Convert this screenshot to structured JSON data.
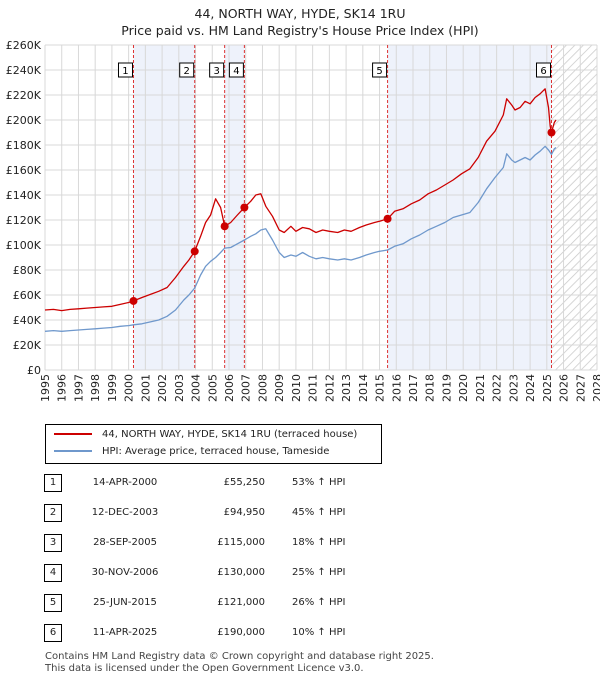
{
  "header": {
    "title_line1": "44, NORTH WAY, HYDE, SK14 1RU",
    "title_line2": "Price paid vs. HM Land Registry's House Price Index (HPI)"
  },
  "chart_data": {
    "type": "line",
    "xlim": [
      1995,
      2028
    ],
    "ylim": [
      0,
      260000
    ],
    "x_ticks": [
      "1995",
      "1996",
      "1997",
      "1998",
      "1999",
      "2000",
      "2001",
      "2002",
      "2003",
      "2004",
      "2005",
      "2006",
      "2007",
      "2008",
      "2009",
      "2010",
      "2011",
      "2012",
      "2013",
      "2014",
      "2015",
      "2016",
      "2017",
      "2018",
      "2019",
      "2020",
      "2021",
      "2022",
      "2023",
      "2024",
      "2025",
      "2026",
      "2027",
      "2028"
    ],
    "y_ticks": [
      "£0",
      "£20K",
      "£40K",
      "£60K",
      "£80K",
      "£100K",
      "£120K",
      "£140K",
      "£160K",
      "£180K",
      "£200K",
      "£220K",
      "£240K",
      "£260K"
    ],
    "colors": {
      "property": "#cc0000",
      "hpi": "#6f98cc",
      "grid": "#d8d8d8",
      "shade": "#eef2fb",
      "vline": "#dd3333"
    },
    "shaded_periods": [
      [
        2000.29,
        2003.95
      ],
      [
        2005.74,
        2006.92
      ],
      [
        2015.48,
        2025.28
      ]
    ],
    "future_from": 2025.28,
    "series": [
      {
        "name": "44, NORTH WAY, HYDE, SK14 1RU (terraced house)",
        "color": "#cc0000",
        "points": [
          [
            1995.0,
            48000
          ],
          [
            1995.5,
            48500
          ],
          [
            1996.0,
            47500
          ],
          [
            1996.5,
            48500
          ],
          [
            1997.0,
            49000
          ],
          [
            1997.5,
            49500
          ],
          [
            1998.0,
            50000
          ],
          [
            1998.5,
            50500
          ],
          [
            1999.0,
            51000
          ],
          [
            1999.5,
            52500
          ],
          [
            2000.0,
            54000
          ],
          [
            2000.29,
            55250
          ],
          [
            2000.8,
            58000
          ],
          [
            2001.3,
            60500
          ],
          [
            2001.8,
            63000
          ],
          [
            2002.3,
            66000
          ],
          [
            2002.8,
            74000
          ],
          [
            2003.3,
            83000
          ],
          [
            2003.6,
            88000
          ],
          [
            2003.95,
            94950
          ],
          [
            2004.3,
            107000
          ],
          [
            2004.6,
            118000
          ],
          [
            2004.9,
            124000
          ],
          [
            2005.2,
            137000
          ],
          [
            2005.5,
            130000
          ],
          [
            2005.74,
            115000
          ],
          [
            2006.1,
            118000
          ],
          [
            2006.5,
            124000
          ],
          [
            2006.92,
            130000
          ],
          [
            2007.3,
            135000
          ],
          [
            2007.6,
            140000
          ],
          [
            2007.9,
            141000
          ],
          [
            2008.2,
            131000
          ],
          [
            2008.6,
            123000
          ],
          [
            2009.0,
            112000
          ],
          [
            2009.3,
            110000
          ],
          [
            2009.7,
            115000
          ],
          [
            2010.0,
            111000
          ],
          [
            2010.4,
            114000
          ],
          [
            2010.8,
            113000
          ],
          [
            2011.2,
            110000
          ],
          [
            2011.6,
            112000
          ],
          [
            2012.0,
            111000
          ],
          [
            2012.5,
            110000
          ],
          [
            2012.9,
            112000
          ],
          [
            2013.3,
            111000
          ],
          [
            2013.8,
            114000
          ],
          [
            2014.2,
            116000
          ],
          [
            2014.7,
            118000
          ],
          [
            2015.0,
            119000
          ],
          [
            2015.48,
            121000
          ],
          [
            2015.9,
            127000
          ],
          [
            2016.4,
            129000
          ],
          [
            2016.9,
            133000
          ],
          [
            2017.4,
            136000
          ],
          [
            2017.9,
            141000
          ],
          [
            2018.4,
            144000
          ],
          [
            2018.9,
            148000
          ],
          [
            2019.4,
            152000
          ],
          [
            2019.9,
            157000
          ],
          [
            2020.4,
            161000
          ],
          [
            2020.9,
            170000
          ],
          [
            2021.4,
            183000
          ],
          [
            2021.9,
            191000
          ],
          [
            2022.4,
            204000
          ],
          [
            2022.6,
            217000
          ],
          [
            2022.9,
            212000
          ],
          [
            2023.1,
            208000
          ],
          [
            2023.4,
            210000
          ],
          [
            2023.7,
            215000
          ],
          [
            2024.0,
            213000
          ],
          [
            2024.3,
            218000
          ],
          [
            2024.6,
            221000
          ],
          [
            2024.9,
            225000
          ],
          [
            2025.1,
            210000
          ],
          [
            2025.2,
            195000
          ],
          [
            2025.28,
            190000
          ],
          [
            2025.45,
            198000
          ],
          [
            2025.55,
            200000
          ]
        ]
      },
      {
        "name": "HPI: Average price, terraced house, Tameside",
        "color": "#6f98cc",
        "points": [
          [
            1995.0,
            31000
          ],
          [
            1995.5,
            31500
          ],
          [
            1996.0,
            31000
          ],
          [
            1996.5,
            31500
          ],
          [
            1997.0,
            32000
          ],
          [
            1997.5,
            32500
          ],
          [
            1998.0,
            33000
          ],
          [
            1998.5,
            33500
          ],
          [
            1999.0,
            34000
          ],
          [
            1999.5,
            35000
          ],
          [
            2000.0,
            35500
          ],
          [
            2000.29,
            36200
          ],
          [
            2000.8,
            37000
          ],
          [
            2001.3,
            38500
          ],
          [
            2001.8,
            40000
          ],
          [
            2002.3,
            43000
          ],
          [
            2002.8,
            48000
          ],
          [
            2003.3,
            56000
          ],
          [
            2003.6,
            60000
          ],
          [
            2003.95,
            65500
          ],
          [
            2004.3,
            76000
          ],
          [
            2004.6,
            83000
          ],
          [
            2004.9,
            87000
          ],
          [
            2005.2,
            90000
          ],
          [
            2005.5,
            94000
          ],
          [
            2005.74,
            97500
          ],
          [
            2006.1,
            98000
          ],
          [
            2006.5,
            101000
          ],
          [
            2006.92,
            104000
          ],
          [
            2007.3,
            107000
          ],
          [
            2007.6,
            109000
          ],
          [
            2007.9,
            112000
          ],
          [
            2008.2,
            113000
          ],
          [
            2008.6,
            104000
          ],
          [
            2009.0,
            94000
          ],
          [
            2009.3,
            90000
          ],
          [
            2009.7,
            92000
          ],
          [
            2010.0,
            91000
          ],
          [
            2010.4,
            94000
          ],
          [
            2010.8,
            91000
          ],
          [
            2011.2,
            89000
          ],
          [
            2011.6,
            90000
          ],
          [
            2012.0,
            89000
          ],
          [
            2012.5,
            88000
          ],
          [
            2012.9,
            89000
          ],
          [
            2013.3,
            88000
          ],
          [
            2013.8,
            90000
          ],
          [
            2014.2,
            92000
          ],
          [
            2014.7,
            94000
          ],
          [
            2015.0,
            95000
          ],
          [
            2015.48,
            96000
          ],
          [
            2015.9,
            99000
          ],
          [
            2016.4,
            101000
          ],
          [
            2016.9,
            105000
          ],
          [
            2017.4,
            108000
          ],
          [
            2017.9,
            112000
          ],
          [
            2018.4,
            115000
          ],
          [
            2018.9,
            118000
          ],
          [
            2019.4,
            122000
          ],
          [
            2019.9,
            124000
          ],
          [
            2020.4,
            126000
          ],
          [
            2020.9,
            134000
          ],
          [
            2021.4,
            145000
          ],
          [
            2021.9,
            154000
          ],
          [
            2022.4,
            162000
          ],
          [
            2022.6,
            173000
          ],
          [
            2022.9,
            168000
          ],
          [
            2023.1,
            166000
          ],
          [
            2023.4,
            168000
          ],
          [
            2023.7,
            170000
          ],
          [
            2024.0,
            168000
          ],
          [
            2024.3,
            172000
          ],
          [
            2024.6,
            175000
          ],
          [
            2024.9,
            179000
          ],
          [
            2025.1,
            176000
          ],
          [
            2025.28,
            172500
          ],
          [
            2025.45,
            177000
          ],
          [
            2025.55,
            178000
          ]
        ]
      }
    ],
    "sales": [
      {
        "label": "1",
        "x": 2000.29,
        "price": 55250
      },
      {
        "label": "2",
        "x": 2003.95,
        "price": 94950
      },
      {
        "label": "3",
        "x": 2005.74,
        "price": 115000
      },
      {
        "label": "4",
        "x": 2006.92,
        "price": 130000
      },
      {
        "label": "5",
        "x": 2015.48,
        "price": 121000
      },
      {
        "label": "6",
        "x": 2025.28,
        "price": 190000
      }
    ]
  },
  "legend": {
    "property_label": "44, NORTH WAY, HYDE, SK14 1RU (terraced house)",
    "hpi_label": "HPI: Average price, terraced house, Tameside"
  },
  "transactions": [
    {
      "num": "1",
      "date": "14-APR-2000",
      "price": "£55,250",
      "hpi": "53% ↑ HPI"
    },
    {
      "num": "2",
      "date": "12-DEC-2003",
      "price": "£94,950",
      "hpi": "45% ↑ HPI"
    },
    {
      "num": "3",
      "date": "28-SEP-2005",
      "price": "£115,000",
      "hpi": "18% ↑ HPI"
    },
    {
      "num": "4",
      "date": "30-NOV-2006",
      "price": "£130,000",
      "hpi": "25% ↑ HPI"
    },
    {
      "num": "5",
      "date": "25-JUN-2015",
      "price": "£121,000",
      "hpi": "26% ↑ HPI"
    },
    {
      "num": "6",
      "date": "11-APR-2025",
      "price": "£190,000",
      "hpi": "10% ↑ HPI"
    }
  ],
  "footer": {
    "line1": "Contains HM Land Registry data © Crown copyright and database right 2025.",
    "line2": "This data is licensed under the Open Government Licence v3.0."
  }
}
